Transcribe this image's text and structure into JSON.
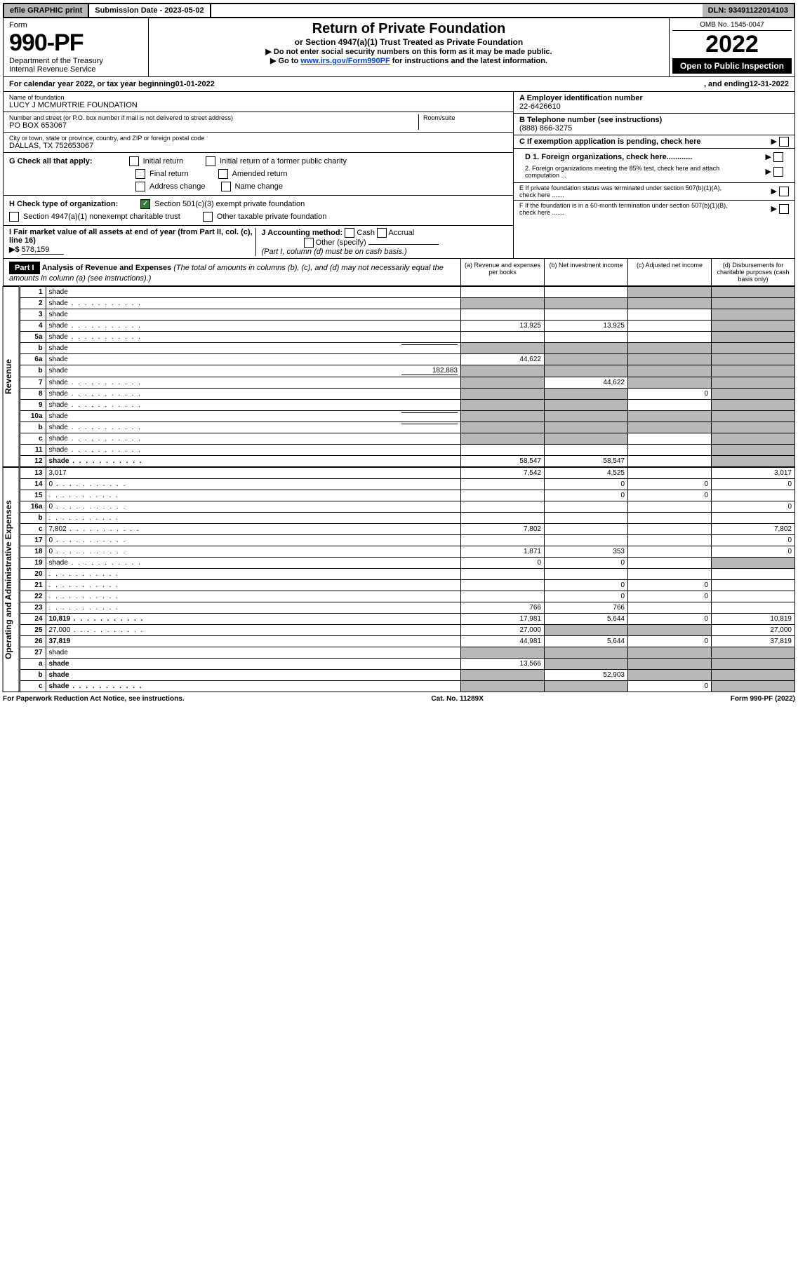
{
  "top": {
    "efile": "efile GRAPHIC print",
    "submission": "Submission Date - 2023-05-02",
    "dln": "DLN: 93491122014103"
  },
  "header": {
    "form_word": "Form",
    "form_num": "990-PF",
    "dept": "Department of the Treasury",
    "irs": "Internal Revenue Service",
    "title": "Return of Private Foundation",
    "subtitle": "or Section 4947(a)(1) Trust Treated as Private Foundation",
    "warn": "▶ Do not enter social security numbers on this form as it may be made public.",
    "goto_pre": "▶ Go to ",
    "goto_link": "www.irs.gov/Form990PF",
    "goto_post": " for instructions and the latest information.",
    "omb": "OMB No. 1545-0047",
    "year": "2022",
    "open": "Open to Public Inspection"
  },
  "cal": {
    "prefix": "For calendar year 2022, or tax year beginning ",
    "begin": "01-01-2022",
    "mid": ", and ending ",
    "end": "12-31-2022"
  },
  "foundation": {
    "name_label": "Name of foundation",
    "name": "LUCY J MCMURTRIE FOUNDATION",
    "addr_label": "Number and street (or P.O. box number if mail is not delivered to street address)",
    "addr": "PO BOX 653067",
    "room_label": "Room/suite",
    "city_label": "City or town, state or province, country, and ZIP or foreign postal code",
    "city": "DALLAS, TX  752653067"
  },
  "right": {
    "a_label": "A Employer identification number",
    "a_val": "22-6426610",
    "b_label": "B Telephone number (see instructions)",
    "b_val": "(888) 866-3275",
    "c_label": "C If exemption application is pending, check here",
    "d1": "D 1. Foreign organizations, check here............",
    "d2": "2. Foreign organizations meeting the 85% test, check here and attach computation ...",
    "e": "E  If private foundation status was terminated under section 507(b)(1)(A), check here .......",
    "f": "F  If the foundation is in a 60-month termination under section 507(b)(1)(B), check here ......."
  },
  "g": {
    "label": "G Check all that apply:",
    "opts": [
      "Initial return",
      "Initial return of a former public charity",
      "Final return",
      "Amended return",
      "Address change",
      "Name change"
    ]
  },
  "h": {
    "label": "H Check type of organization:",
    "opt1": "Section 501(c)(3) exempt private foundation",
    "opt2": "Section 4947(a)(1) nonexempt charitable trust",
    "opt3": "Other taxable private foundation"
  },
  "i": {
    "label": "I Fair market value of all assets at end of year (from Part II, col. (c), line 16)",
    "arrow": "▶$",
    "val": "578,159"
  },
  "j": {
    "label": "J Accounting method:",
    "cash": "Cash",
    "accrual": "Accrual",
    "other": "Other (specify)",
    "note": "(Part I, column (d) must be on cash basis.)"
  },
  "part1": {
    "label": "Part I",
    "title": "Analysis of Revenue and Expenses",
    "note": " (The total of amounts in columns (b), (c), and (d) may not necessarily equal the amounts in column (a) (see instructions).)",
    "col_a": "(a) Revenue and expenses per books",
    "col_b": "(b) Net investment income",
    "col_c": "(c) Adjusted net income",
    "col_d": "(d) Disbursements for charitable purposes (cash basis only)"
  },
  "side_labels": {
    "revenue": "Revenue",
    "expenses": "Operating and Administrative Expenses"
  },
  "rows": [
    {
      "n": "1",
      "d": "shade",
      "a": "",
      "b": "",
      "c": "shade"
    },
    {
      "n": "2",
      "d": "shade",
      "a": "shade",
      "b": "shade",
      "c": "shade",
      "dots": true
    },
    {
      "n": "3",
      "d": "shade",
      "a": "",
      "b": "",
      "c": ""
    },
    {
      "n": "4",
      "d": "shade",
      "a": "13,925",
      "b": "13,925",
      "c": "",
      "dots": true
    },
    {
      "n": "5a",
      "d": "shade",
      "a": "",
      "b": "",
      "c": "",
      "dots": true
    },
    {
      "n": "b",
      "d": "shade",
      "a": "shade",
      "b": "shade",
      "c": "shade",
      "inline": ""
    },
    {
      "n": "6a",
      "d": "shade",
      "a": "44,622",
      "b": "shade",
      "c": "shade"
    },
    {
      "n": "b",
      "d": "shade",
      "a": "shade",
      "b": "shade",
      "c": "shade",
      "inline": "182,883"
    },
    {
      "n": "7",
      "d": "shade",
      "a": "shade",
      "b": "44,622",
      "c": "shade",
      "dots": true
    },
    {
      "n": "8",
      "d": "shade",
      "a": "shade",
      "b": "shade",
      "c": "0",
      "dots": true
    },
    {
      "n": "9",
      "d": "shade",
      "a": "shade",
      "b": "shade",
      "c": "",
      "dots": true
    },
    {
      "n": "10a",
      "d": "shade",
      "a": "shade",
      "b": "shade",
      "c": "shade",
      "inline": ""
    },
    {
      "n": "b",
      "d": "shade",
      "a": "shade",
      "b": "shade",
      "c": "shade",
      "inline": "",
      "dots": true
    },
    {
      "n": "c",
      "d": "shade",
      "a": "shade",
      "b": "shade",
      "c": "",
      "dots": true
    },
    {
      "n": "11",
      "d": "shade",
      "a": "",
      "b": "",
      "c": "",
      "dots": true
    },
    {
      "n": "12",
      "d": "shade",
      "a": "58,547",
      "b": "58,547",
      "c": "",
      "bold": true,
      "dots": true
    }
  ],
  "exp_rows": [
    {
      "n": "13",
      "d": "3,017",
      "a": "7,542",
      "b": "4,525",
      "c": ""
    },
    {
      "n": "14",
      "d": "0",
      "a": "",
      "b": "0",
      "c": "0",
      "dots": true
    },
    {
      "n": "15",
      "d": "",
      "a": "",
      "b": "0",
      "c": "0",
      "dots": true
    },
    {
      "n": "16a",
      "d": "0",
      "a": "",
      "b": "",
      "c": "",
      "dots": true
    },
    {
      "n": "b",
      "d": "",
      "a": "",
      "b": "",
      "c": "",
      "dots": true
    },
    {
      "n": "c",
      "d": "7,802",
      "a": "7,802",
      "b": "",
      "c": "",
      "dots": true
    },
    {
      "n": "17",
      "d": "0",
      "a": "",
      "b": "",
      "c": "",
      "dots": true
    },
    {
      "n": "18",
      "d": "0",
      "a": "1,871",
      "b": "353",
      "c": "",
      "dots": true
    },
    {
      "n": "19",
      "d": "shade",
      "a": "0",
      "b": "0",
      "c": "",
      "dots": true
    },
    {
      "n": "20",
      "d": "",
      "a": "",
      "b": "",
      "c": "",
      "dots": true
    },
    {
      "n": "21",
      "d": "",
      "a": "",
      "b": "0",
      "c": "0",
      "dots": true
    },
    {
      "n": "22",
      "d": "",
      "a": "",
      "b": "0",
      "c": "0",
      "dots": true
    },
    {
      "n": "23",
      "d": "",
      "a": "766",
      "b": "766",
      "c": "",
      "dots": true
    },
    {
      "n": "24",
      "d": "10,819",
      "a": "17,981",
      "b": "5,644",
      "c": "0",
      "bold": true,
      "dots": true
    },
    {
      "n": "25",
      "d": "27,000",
      "a": "27,000",
      "b": "shade",
      "c": "shade",
      "dots": true
    },
    {
      "n": "26",
      "d": "37,819",
      "a": "44,981",
      "b": "5,644",
      "c": "0",
      "bold": true
    },
    {
      "n": "27",
      "d": "shade",
      "a": "shade",
      "b": "shade",
      "c": "shade"
    },
    {
      "n": "a",
      "d": "shade",
      "a": "13,566",
      "b": "shade",
      "c": "shade",
      "bold": true
    },
    {
      "n": "b",
      "d": "shade",
      "a": "shade",
      "b": "52,903",
      "c": "shade",
      "bold": true
    },
    {
      "n": "c",
      "d": "shade",
      "a": "shade",
      "b": "shade",
      "c": "0",
      "bold": true,
      "dots": true
    }
  ],
  "footer": {
    "left": "For Paperwork Reduction Act Notice, see instructions.",
    "mid": "Cat. No. 11289X",
    "right": "Form 990-PF (2022)"
  },
  "colors": {
    "shade": "#b8b8b8",
    "link": "#0044cc",
    "check": "#2e7d32"
  }
}
